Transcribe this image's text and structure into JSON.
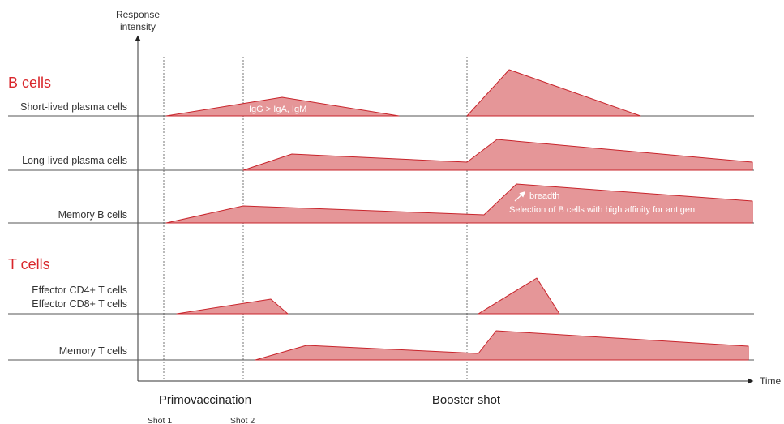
{
  "axis": {
    "y_title_line1": "Response",
    "y_title_line2": "intensity",
    "x_title": "Time"
  },
  "sections": {
    "b_cells": "B cells",
    "t_cells": "T cells"
  },
  "rows": {
    "short_lived": "Short-lived plasma cells",
    "long_lived": "Long-lived plasma cells",
    "memory_b": "Memory B cells",
    "effector_cd4": "Effector CD4+ T cells",
    "effector_cd8": "Effector CD8+ T cells",
    "memory_t": "Memory T cells"
  },
  "annotations": {
    "isotypes": "IgG > IgA, IgM",
    "breadth": "breadth",
    "selection": "Selection of B cells with high affinity for antigen"
  },
  "phases": {
    "primovaccination": "Primovaccination",
    "booster": "Booster shot",
    "shot1": "Shot 1",
    "shot2": "Shot 2"
  },
  "colors": {
    "accent": "#d9262b",
    "fill": "#e59698",
    "stroke": "#c8242b",
    "axis": "#333333"
  }
}
